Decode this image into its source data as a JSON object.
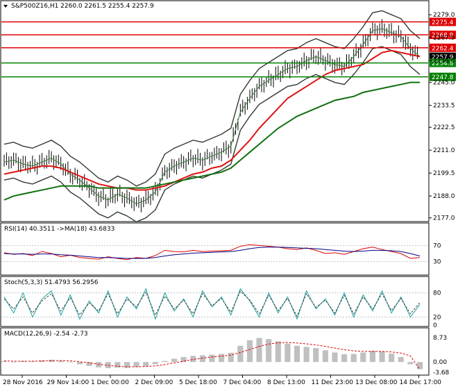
{
  "header": {
    "symbol_line": "S&P500Z16,H1  2260.0 2261.5 2255.4 2257.9"
  },
  "colors": {
    "background": "#ffffff",
    "grid_border": "#000000",
    "price_bars": "#000000",
    "bollinger": "#2f3b2f",
    "ma_fast": "#3a7a3a",
    "ma_mid": "#e01010",
    "ma_slow": "#107010",
    "level_red": "#e00000",
    "level_green": "#008000",
    "rsi": "#e00000",
    "rsi_ma": "#000080",
    "stoch_main": "#20a0a0",
    "stoch_signal": "#404040",
    "macd_hist": "#c0c0c0",
    "macd_signal": "#e00000"
  },
  "chart_data": [
    {
      "type": "candlestick",
      "panel": "price",
      "title": "S&P500Z16,H1",
      "ohlc": {
        "open": 2260.0,
        "high": 2261.5,
        "low": 2255.4,
        "close": 2257.9
      },
      "ylim": [
        2175.5,
        2281.5
      ],
      "y_ticks": [
        2279.0,
        2267.5,
        2256.0,
        2245.0,
        2233.5,
        2222.5,
        2211.0,
        2199.5,
        2188.0,
        2177.0
      ],
      "x_ticks": [
        "28 Nov 2016",
        "29 Nov 14:00",
        "1 Dec 00:00",
        "2 Dec 09:00",
        "5 Dec 18:00",
        "7 Dec 04:00",
        "8 Dec 13:00",
        "11 Dec 23:00",
        "13 Dec 08:00",
        "14 Dec 17:00"
      ],
      "horizontal_levels": [
        {
          "label": "2275.4",
          "value": 2275.4,
          "color": "red"
        },
        {
          "label": "2268.9",
          "value": 2268.9,
          "color": "red"
        },
        {
          "label": "2262.4",
          "value": 2262.4,
          "color": "red"
        },
        {
          "label": "2257.9",
          "value": 2257.9,
          "color": "current"
        },
        {
          "label": "2254.8",
          "value": 2254.8,
          "color": "green"
        },
        {
          "label": "2247.8",
          "value": 2247.8,
          "color": "green"
        }
      ],
      "series": [
        {
          "values": [
            2205,
            2206,
            2204,
            2203,
            2205,
            2207,
            2204,
            2199,
            2196,
            2192,
            2188,
            2186,
            2189,
            2187,
            2184,
            2186,
            2190,
            2200,
            2203,
            2205,
            2207,
            2206,
            2208,
            2210,
            2213,
            2230,
            2237,
            2243,
            2246,
            2249,
            2252,
            2253,
            2256,
            2258,
            2256,
            2254,
            2253,
            2258,
            2264,
            2271,
            2272,
            2270,
            2268,
            2262,
            2258
          ]
        },
        {
          "values": [
            2199,
            2200,
            2201,
            2202,
            2203,
            2203,
            2202,
            2200,
            2198,
            2196,
            2194,
            2193,
            2192,
            2192,
            2191,
            2191,
            2192,
            2193,
            2195,
            2197,
            2199,
            2200,
            2202,
            2203,
            2206,
            2211,
            2216,
            2222,
            2227,
            2232,
            2237,
            2240,
            2243,
            2246,
            2249,
            2251,
            2252,
            2253,
            2254,
            2257,
            2260,
            2261,
            2260,
            2259,
            2258
          ]
        },
        {
          "values": [
            2186,
            2188,
            2189,
            2190,
            2191,
            2192,
            2193,
            2193,
            2193,
            2193,
            2192,
            2192,
            2192,
            2192,
            2192,
            2192,
            2193,
            2194,
            2195,
            2196,
            2197,
            2198,
            2199,
            2200,
            2202,
            2206,
            2210,
            2214,
            2218,
            2222,
            2225,
            2228,
            2230,
            2232,
            2234,
            2236,
            2237,
            2238,
            2240,
            2241,
            2242,
            2243,
            2244,
            2245,
            2245
          ]
        }
      ]
    },
    {
      "type": "line",
      "panel": "rsi",
      "title": "RSI(14) 40.3511  ->MA(18) 43.6833",
      "ylim": [
        0,
        100
      ],
      "y_ticks": [
        70,
        30
      ],
      "series": [
        {
          "values": [
            52,
            48,
            50,
            45,
            55,
            50,
            42,
            46,
            40,
            38,
            36,
            42,
            38,
            35,
            40,
            38,
            45,
            58,
            55,
            54,
            58,
            55,
            56,
            57,
            58,
            68,
            72,
            70,
            68,
            66,
            62,
            60,
            64,
            58,
            50,
            52,
            48,
            55,
            62,
            66,
            60,
            55,
            50,
            38,
            40
          ]
        },
        {
          "values": [
            50,
            49,
            49,
            48,
            49,
            49,
            47,
            46,
            44,
            42,
            40,
            40,
            39,
            38,
            38,
            38,
            40,
            44,
            47,
            49,
            51,
            52,
            53,
            54,
            55,
            58,
            62,
            65,
            66,
            66,
            65,
            64,
            63,
            62,
            60,
            58,
            56,
            55,
            56,
            58,
            58,
            57,
            55,
            50,
            44
          ]
        }
      ]
    },
    {
      "type": "line",
      "panel": "stochastic",
      "title": "Stoch(5,3,3) 51.4793 56.2956",
      "ylim": [
        0,
        100
      ],
      "y_ticks": [
        80,
        20,
        0
      ],
      "series": [
        {
          "values": [
            70,
            30,
            80,
            20,
            65,
            85,
            25,
            75,
            15,
            60,
            30,
            85,
            20,
            70,
            40,
            90,
            15,
            80,
            35,
            65,
            20,
            85,
            45,
            70,
            25,
            90,
            60,
            20,
            80,
            30,
            70,
            15,
            85,
            40,
            65,
            25,
            80,
            20,
            75,
            35,
            85,
            30,
            70,
            20,
            51
          ]
        },
        {
          "values": [
            65,
            40,
            70,
            30,
            60,
            78,
            35,
            68,
            25,
            55,
            35,
            78,
            28,
            65,
            45,
            82,
            25,
            72,
            40,
            62,
            28,
            78,
            48,
            66,
            32,
            84,
            62,
            28,
            74,
            36,
            66,
            22,
            78,
            44,
            62,
            30,
            74,
            28,
            70,
            40,
            78,
            36,
            66,
            28,
            56
          ]
        }
      ]
    },
    {
      "type": "bar",
      "panel": "macd",
      "title": "MACD(12,26,9) -2.54 -2.73",
      "ylim": [
        -3.68,
        8.73
      ],
      "y_ticks": [
        8.73,
        0.0,
        -3.68
      ],
      "series": [
        {
          "values": [
            0.3,
            0.1,
            0.4,
            0.2,
            0.6,
            0.8,
            0.5,
            0.1,
            -0.8,
            -1.4,
            -1.9,
            -2.2,
            -2.0,
            -2.1,
            -1.8,
            -1.5,
            -0.8,
            0.4,
            1.2,
            1.8,
            2.2,
            2.4,
            2.6,
            2.9,
            3.3,
            5.8,
            7.8,
            8.6,
            8.2,
            7.4,
            6.6,
            5.8,
            5.4,
            5.0,
            4.2,
            3.4,
            2.8,
            2.9,
            3.4,
            4.0,
            3.8,
            3.0,
            1.8,
            -0.8,
            -2.54
          ]
        },
        {
          "values": [
            0.4,
            0.3,
            0.3,
            0.3,
            0.4,
            0.5,
            0.5,
            0.4,
            0.1,
            -0.3,
            -0.8,
            -1.2,
            -1.5,
            -1.7,
            -1.7,
            -1.6,
            -1.4,
            -0.9,
            -0.3,
            0.3,
            0.9,
            1.4,
            1.8,
            2.1,
            2.5,
            3.4,
            4.5,
            5.6,
            6.4,
            6.9,
            7.0,
            6.8,
            6.5,
            6.1,
            5.6,
            5.0,
            4.4,
            4.0,
            3.8,
            3.8,
            3.8,
            3.6,
            3.2,
            2.2,
            -2.73
          ]
        }
      ]
    }
  ]
}
